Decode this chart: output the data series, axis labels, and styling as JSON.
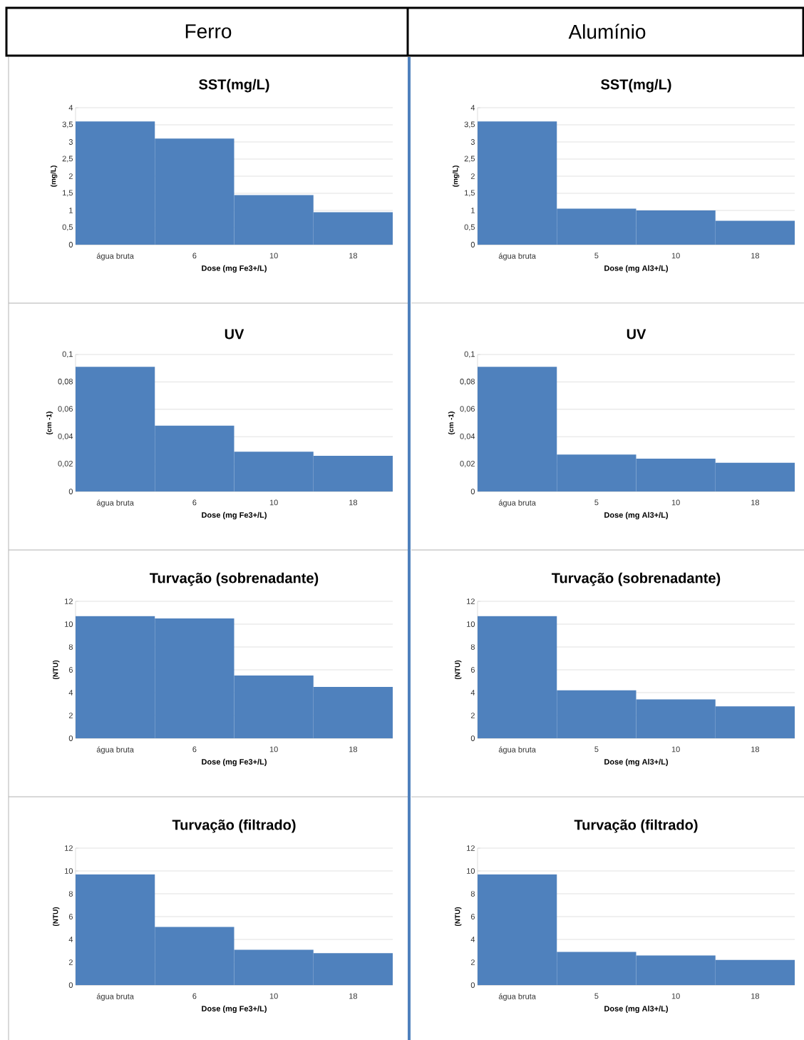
{
  "chart_data": [
    {
      "type": "bar",
      "title": "SST(mg/L)",
      "xlabel": "Dose (mg Fe3+/L)",
      "ylabel": "(mg/L)",
      "annotations": [
        "Ferro"
      ],
      "categories": [
        "água bruta",
        "6",
        "10",
        "18"
      ],
      "values": [
        3.6,
        3.1,
        1.45,
        0.95
      ],
      "color": "#4f81bd",
      "ylim": [
        0,
        4
      ],
      "yticks": [
        0,
        {
          "value": 0.5,
          "label": "0,5"
        },
        1,
        {
          "value": 1.5,
          "label": "1,5"
        },
        2,
        {
          "value": 2.5,
          "label": "2,5"
        },
        3,
        {
          "value": 3.5,
          "label": "3,5"
        },
        4
      ],
      "grid": "y"
    },
    {
      "type": "bar",
      "title": "SST(mg/L)",
      "xlabel": "Dose (mg Al3+/L)",
      "ylabel": "(mg/L)",
      "annotations": [
        "Alumínio"
      ],
      "categories": [
        "água bruta",
        "5",
        "10",
        "18"
      ],
      "values": [
        3.6,
        1.05,
        1.0,
        0.7
      ],
      "color": "#4f81bd",
      "ylim": [
        0,
        4
      ],
      "yticks": [
        0,
        {
          "value": 0.5,
          "label": "0,5"
        },
        1,
        {
          "value": 1.5,
          "label": "1,5"
        },
        2,
        {
          "value": 2.5,
          "label": "2,5"
        },
        3,
        {
          "value": 3.5,
          "label": "3,5"
        },
        4
      ],
      "grid": "y"
    },
    {
      "type": "bar",
      "title": "UV",
      "xlabel": "Dose (mg Fe3+/L)",
      "ylabel": "(cm -1)",
      "categories": [
        "água bruta",
        "6",
        "10",
        "18"
      ],
      "values": [
        0.091,
        0.048,
        0.029,
        0.026
      ],
      "color": "#4f81bd",
      "ylim": [
        0,
        0.1
      ],
      "yticks": [
        0,
        {
          "value": 0.02,
          "label": "0,02"
        },
        {
          "value": 0.04,
          "label": "0,04"
        },
        {
          "value": 0.06,
          "label": "0,06"
        },
        {
          "value": 0.08,
          "label": "0,08"
        },
        {
          "value": 0.1,
          "label": "0,1"
        }
      ],
      "grid": "y"
    },
    {
      "type": "bar",
      "title": "UV",
      "xlabel": "Dose (mg Al3+/L)",
      "ylabel": "(cm -1)",
      "categories": [
        "água bruta",
        "5",
        "10",
        "18"
      ],
      "values": [
        0.091,
        0.027,
        0.024,
        0.021
      ],
      "color": "#4f81bd",
      "ylim": [
        0,
        0.1
      ],
      "yticks": [
        0,
        {
          "value": 0.02,
          "label": "0,02"
        },
        {
          "value": 0.04,
          "label": "0,04"
        },
        {
          "value": 0.06,
          "label": "0,06"
        },
        {
          "value": 0.08,
          "label": "0,08"
        },
        {
          "value": 0.1,
          "label": "0,1"
        }
      ],
      "grid": "y"
    },
    {
      "type": "bar",
      "title": "Turvação (sobrenadante)",
      "xlabel": "Dose (mg Fe3+/L)",
      "ylabel": "(NTU)",
      "categories": [
        "água bruta",
        "6",
        "10",
        "18"
      ],
      "values": [
        10.7,
        10.5,
        5.5,
        4.5
      ],
      "color": "#4f81bd",
      "ylim": [
        0,
        12
      ],
      "yticks": [
        0,
        2,
        4,
        6,
        8,
        10,
        12
      ],
      "grid": "y"
    },
    {
      "type": "bar",
      "title": "Turvação (sobrenadante)",
      "xlabel": "Dose (mg Al3+/L)",
      "ylabel": "(NTU)",
      "categories": [
        "água bruta",
        "5",
        "10",
        "18"
      ],
      "values": [
        10.7,
        4.2,
        3.4,
        2.8
      ],
      "color": "#4f81bd",
      "ylim": [
        0,
        12
      ],
      "yticks": [
        0,
        2,
        4,
        6,
        8,
        10,
        12
      ],
      "grid": "y"
    },
    {
      "type": "bar",
      "title": "Turvação (filtrado)",
      "xlabel": "Dose (mg Fe3+/L)",
      "ylabel": "(NTU)",
      "categories": [
        "água bruta",
        "6",
        "10",
        "18"
      ],
      "values": [
        9.7,
        5.1,
        3.1,
        2.8
      ],
      "color": "#4f81bd",
      "ylim": [
        0,
        12
      ],
      "yticks": [
        0,
        2,
        4,
        6,
        8,
        10,
        12
      ],
      "grid": "y"
    },
    {
      "type": "bar",
      "title": "Turvação (filtrado)",
      "xlabel": "Dose (mg Al3+/L)",
      "ylabel": "(NTU)",
      "categories": [
        "água bruta",
        "5",
        "10",
        "18"
      ],
      "values": [
        9.7,
        2.9,
        2.6,
        2.2
      ],
      "color": "#4f81bd",
      "ylim": [
        0,
        12
      ],
      "yticks": [
        0,
        2,
        4,
        6,
        8,
        10,
        12
      ],
      "grid": "y"
    }
  ]
}
